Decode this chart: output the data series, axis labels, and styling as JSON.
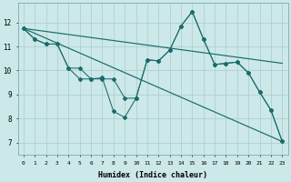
{
  "xlabel": "Humidex (Indice chaleur)",
  "background_color": "#cce8e8",
  "grid_color": "#aacccc",
  "line_color": "#1a6b6b",
  "line1_x": [
    0,
    1,
    2,
    3,
    4,
    5,
    6,
    7,
    8,
    9,
    10,
    11,
    12,
    13,
    14,
    15,
    16,
    17,
    18,
    19,
    20,
    21,
    22,
    23
  ],
  "line1_y": [
    11.75,
    11.3,
    11.1,
    11.1,
    10.1,
    10.1,
    9.65,
    9.7,
    8.3,
    8.05,
    8.85,
    10.45,
    10.4,
    10.85,
    11.85,
    12.45,
    11.3,
    10.25,
    10.3,
    10.35,
    9.9,
    9.1,
    8.35,
    7.05
  ],
  "line2_x": [
    0,
    1,
    2,
    3,
    4,
    5,
    6,
    7,
    8,
    9,
    10,
    11,
    12,
    13,
    14,
    15,
    16,
    17,
    18,
    19,
    20,
    21,
    22,
    23
  ],
  "line2_y": [
    11.75,
    11.3,
    11.1,
    11.1,
    10.1,
    9.65,
    9.65,
    9.65,
    9.65,
    8.85,
    8.85,
    10.45,
    10.4,
    10.85,
    11.85,
    12.45,
    11.3,
    10.25,
    10.3,
    10.35,
    9.9,
    9.1,
    8.35,
    7.05
  ],
  "trend1_x": [
    0,
    23
  ],
  "trend1_y": [
    11.75,
    10.3
  ],
  "trend2_x": [
    0,
    23
  ],
  "trend2_y": [
    11.75,
    7.05
  ],
  "ylim": [
    6.5,
    12.8
  ],
  "yticks": [
    7,
    8,
    9,
    10,
    11,
    12
  ],
  "xticks": [
    0,
    1,
    2,
    3,
    4,
    5,
    6,
    7,
    8,
    9,
    10,
    11,
    12,
    13,
    14,
    15,
    16,
    17,
    18,
    19,
    20,
    21,
    22,
    23
  ],
  "figsize": [
    3.2,
    2.0
  ],
  "dpi": 100
}
